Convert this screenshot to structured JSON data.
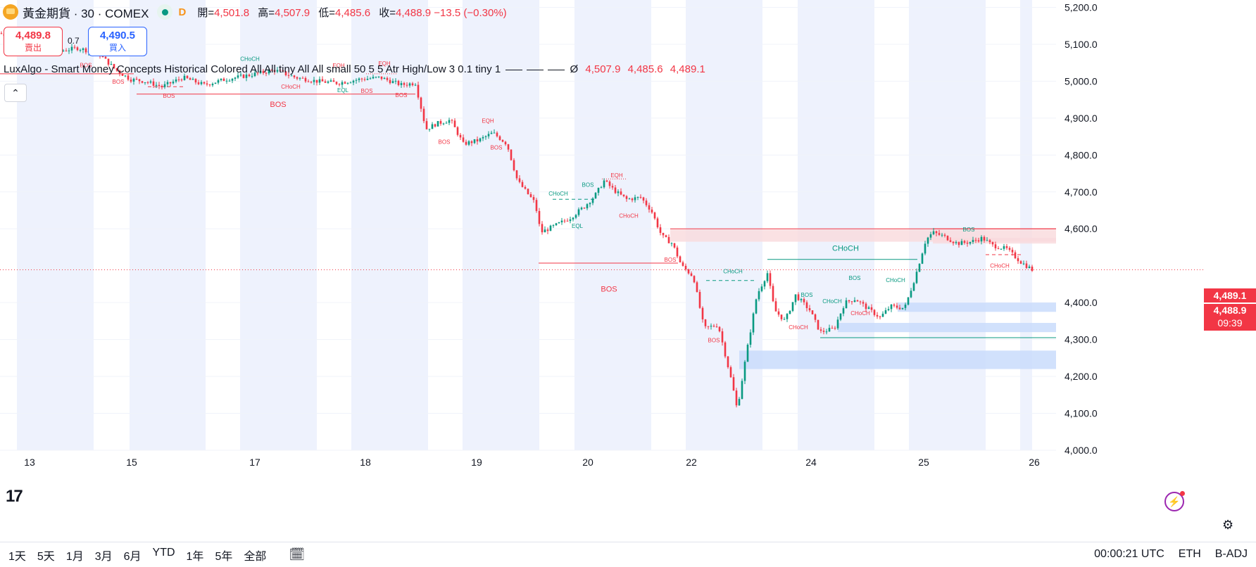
{
  "header": {
    "title": "黃金期貨 · 30 · COMEX",
    "badge": "D",
    "ohlc": [
      {
        "label": "開=",
        "value": "4,501.8"
      },
      {
        "label": "高=",
        "value": "4,507.9"
      },
      {
        "label": "低=",
        "value": "4,485.6"
      },
      {
        "label": "收=",
        "value": "4,488.9 −13.5 (−0.30%)"
      }
    ]
  },
  "trade": {
    "sell_price": "4,489.8",
    "sell_label": "賣出",
    "spread": "0.7",
    "buy_price": "4,490.5",
    "buy_label": "買入"
  },
  "indicator": {
    "name": "LuxAlgo - Smart Money Concepts Historical Colored All All tiny All All small 50 5 5 Atr High/Low 3 0.1 tiny 1",
    "symbol": "Ø",
    "v1": "4,507.9",
    "v2": "4,485.6",
    "v3": "4,489.1"
  },
  "price_tags": {
    "upper": "4,489.1",
    "last": "4,488.9",
    "countdown": "09:39"
  },
  "colors": {
    "up": "#089981",
    "down": "#f23645",
    "band": "#eef2fd",
    "zone_blue": "#c9dcfb",
    "zone_red": "#f9d9dc"
  },
  "bottom": {
    "ranges": [
      "1天",
      "5天",
      "1月",
      "3月",
      "6月",
      "YTD",
      "1年",
      "5年",
      "全部"
    ],
    "calendar_icon": "calendar-range-icon",
    "clock": "00:00:21 UTC",
    "session": "ETH",
    "adj": "B-ADJ"
  },
  "chart_data": {
    "type": "candlestick",
    "yticks": [
      5200,
      5100,
      5000,
      4900,
      4800,
      4700,
      4600,
      4400,
      4300,
      4200,
      4100,
      4000
    ],
    "ytick_labels": [
      "5,200.0",
      "5,100.0",
      "5,000.0",
      "4,900.0",
      "4,800.0",
      "4,700.0",
      "4,600.0",
      "4,400.0",
      "4,300.0",
      "4,200.0",
      "4,100.0",
      "4,000.0"
    ],
    "ylim": [
      4000,
      5220
    ],
    "xlim": [
      0,
      1500
    ],
    "xticks": [
      {
        "label": "13",
        "x": 40
      },
      {
        "label": "15",
        "x": 185
      },
      {
        "label": "17",
        "x": 360
      },
      {
        "label": "18",
        "x": 517
      },
      {
        "label": "19",
        "x": 675
      },
      {
        "label": "20",
        "x": 833
      },
      {
        "label": "22",
        "x": 980
      },
      {
        "label": "24",
        "x": 1150
      },
      {
        "label": "25",
        "x": 1310
      },
      {
        "label": "26",
        "x": 1467
      }
    ],
    "session_bands": [
      [
        24,
        133
      ],
      [
        184,
        292
      ],
      [
        341,
        450
      ],
      [
        499,
        608
      ],
      [
        657,
        766
      ],
      [
        816,
        925
      ],
      [
        974,
        1083
      ],
      [
        1133,
        1242
      ],
      [
        1291,
        1400
      ],
      [
        1449,
        1466
      ]
    ],
    "last_price": 4488.9,
    "price_path": [
      [
        0,
        5130
      ],
      [
        40,
        5100
      ],
      [
        80,
        5080
      ],
      [
        110,
        5090
      ],
      [
        140,
        5075
      ],
      [
        165,
        5030
      ],
      [
        185,
        5005
      ],
      [
        205,
        5000
      ],
      [
        230,
        4985
      ],
      [
        260,
        5010
      ],
      [
        290,
        4990
      ],
      [
        320,
        5005
      ],
      [
        350,
        5015
      ],
      [
        390,
        5030
      ],
      [
        420,
        5010
      ],
      [
        450,
        5000
      ],
      [
        480,
        4995
      ],
      [
        510,
        5005
      ],
      [
        540,
        5010
      ],
      [
        570,
        4990
      ],
      [
        590,
        4995
      ],
      [
        605,
        4870
      ],
      [
        620,
        4885
      ],
      [
        640,
        4895
      ],
      [
        658,
        4830
      ],
      [
        680,
        4840
      ],
      [
        700,
        4860
      ],
      [
        720,
        4830
      ],
      [
        735,
        4730
      ],
      [
        760,
        4670
      ],
      [
        768,
        4590
      ],
      [
        790,
        4610
      ],
      [
        810,
        4630
      ],
      [
        830,
        4660
      ],
      [
        845,
        4690
      ],
      [
        858,
        4730
      ],
      [
        875,
        4700
      ],
      [
        890,
        4680
      ],
      [
        910,
        4685
      ],
      [
        925,
        4650
      ],
      [
        940,
        4580
      ],
      [
        955,
        4560
      ],
      [
        968,
        4500
      ],
      [
        985,
        4470
      ],
      [
        1000,
        4330
      ],
      [
        1020,
        4340
      ],
      [
        1040,
        4180
      ],
      [
        1047,
        4110
      ],
      [
        1060,
        4260
      ],
      [
        1075,
        4420
      ],
      [
        1090,
        4480
      ],
      [
        1100,
        4380
      ],
      [
        1115,
        4350
      ],
      [
        1130,
        4420
      ],
      [
        1150,
        4380
      ],
      [
        1165,
        4320
      ],
      [
        1185,
        4330
      ],
      [
        1200,
        4400
      ],
      [
        1215,
        4410
      ],
      [
        1235,
        4380
      ],
      [
        1250,
        4360
      ],
      [
        1265,
        4390
      ],
      [
        1285,
        4385
      ],
      [
        1300,
        4470
      ],
      [
        1315,
        4570
      ],
      [
        1325,
        4590
      ],
      [
        1340,
        4580
      ],
      [
        1360,
        4560
      ],
      [
        1380,
        4565
      ],
      [
        1395,
        4575
      ],
      [
        1410,
        4555
      ],
      [
        1430,
        4545
      ],
      [
        1450,
        4510
      ],
      [
        1466,
        4489
      ]
    ],
    "zones": [
      {
        "kind": "demand",
        "x0": 1050,
        "x1": 1500,
        "y0": 4220,
        "y1": 4270
      },
      {
        "kind": "demand",
        "x0": 1190,
        "x1": 1500,
        "y0": 4320,
        "y1": 4345
      },
      {
        "kind": "demand",
        "x0": 1275,
        "x1": 1500,
        "y0": 4375,
        "y1": 4400
      },
      {
        "kind": "supply",
        "x0": 952,
        "x1": 1500,
        "y0": 4565,
        "y1": 4598
      },
      {
        "kind": "supply",
        "x0": 1325,
        "x1": 1500,
        "y0": 4560,
        "y1": 4575
      }
    ],
    "structure_lines": [
      {
        "color": "down",
        "x0": 0,
        "x1": 190,
        "y": 5020,
        "style": "solid"
      },
      {
        "color": "down",
        "x0": 194,
        "x1": 590,
        "y": 4965,
        "style": "solid"
      },
      {
        "color": "down",
        "x0": 765,
        "x1": 963,
        "y": 4507,
        "style": "solid"
      },
      {
        "color": "down",
        "x0": 952,
        "x1": 1500,
        "y": 4600,
        "style": "solid"
      },
      {
        "color": "down",
        "x0": 1325,
        "x1": 1500,
        "y": 4600,
        "style": "solid"
      },
      {
        "color": "up",
        "x0": 1090,
        "x1": 1303,
        "y": 4517,
        "style": "solid"
      },
      {
        "color": "up",
        "x0": 1165,
        "x1": 1500,
        "y": 4305,
        "style": "solid"
      },
      {
        "color": "up",
        "x0": 1003,
        "x1": 1075,
        "y": 4460,
        "style": "dashed"
      },
      {
        "color": "up",
        "x0": 785,
        "x1": 845,
        "y": 4680,
        "style": "dashed"
      },
      {
        "color": "down",
        "x0": 855,
        "x1": 890,
        "y": 4735,
        "style": "dotted"
      },
      {
        "color": "down",
        "x0": 520,
        "x1": 565,
        "y": 5020,
        "style": "dotted"
      },
      {
        "color": "down",
        "x0": 210,
        "x1": 260,
        "y": 4985,
        "style": "dashed"
      },
      {
        "color": "down",
        "x0": 1400,
        "x1": 1450,
        "y": 4530,
        "style": "dashed"
      }
    ],
    "annotations": [
      {
        "text": "BOS",
        "x": 122,
        "y": 5038,
        "color": "down",
        "size": 8
      },
      {
        "text": "BOS",
        "x": 168,
        "y": 4993,
        "color": "down",
        "size": 8
      },
      {
        "text": "CHoCH",
        "x": 355,
        "y": 5055,
        "color": "up",
        "size": 8
      },
      {
        "text": "EQH",
        "x": 481,
        "y": 5037,
        "color": "down",
        "size": 8
      },
      {
        "text": "EQH",
        "x": 546,
        "y": 5043,
        "color": "down",
        "size": 8
      },
      {
        "text": "CHoCH",
        "x": 413,
        "y": 4980,
        "color": "down",
        "size": 8
      },
      {
        "text": "BOS",
        "x": 240,
        "y": 4955,
        "color": "down",
        "size": 8
      },
      {
        "text": "EQL",
        "x": 487,
        "y": 4970,
        "color": "up",
        "size": 8
      },
      {
        "text": "BOS",
        "x": 521,
        "y": 4968,
        "color": "down",
        "size": 8
      },
      {
        "text": "BOS",
        "x": 570,
        "y": 4957,
        "color": "down",
        "size": 8
      },
      {
        "text": "BOS",
        "x": 395,
        "y": 4930,
        "color": "down",
        "size": 11
      },
      {
        "text": "BOS",
        "x": 631,
        "y": 4830,
        "color": "down",
        "size": 8
      },
      {
        "text": "EQH",
        "x": 693,
        "y": 4887,
        "color": "down",
        "size": 8
      },
      {
        "text": "BOS",
        "x": 705,
        "y": 4815,
        "color": "down",
        "size": 8
      },
      {
        "text": "CHoCH",
        "x": 793,
        "y": 4690,
        "color": "up",
        "size": 8
      },
      {
        "text": "BOS",
        "x": 835,
        "y": 4714,
        "color": "up",
        "size": 8
      },
      {
        "text": "EQL",
        "x": 820,
        "y": 4602,
        "color": "up",
        "size": 8
      },
      {
        "text": "EQH",
        "x": 876,
        "y": 4740,
        "color": "down",
        "size": 8
      },
      {
        "text": "CHoCH",
        "x": 893,
        "y": 4630,
        "color": "down",
        "size": 8
      },
      {
        "text": "BOS",
        "x": 952,
        "y": 4511,
        "color": "down",
        "size": 8
      },
      {
        "text": "BOS",
        "x": 865,
        "y": 4430,
        "color": "down",
        "size": 11
      },
      {
        "text": "CHoCH",
        "x": 1041,
        "y": 4479,
        "color": "up",
        "size": 8
      },
      {
        "text": "BOS",
        "x": 1014,
        "y": 4293,
        "color": "down",
        "size": 8
      },
      {
        "text": "CHoCH",
        "x": 1201,
        "y": 4540,
        "color": "up",
        "size": 11
      },
      {
        "text": "BOS",
        "x": 1146,
        "y": 4416,
        "color": "up",
        "size": 8
      },
      {
        "text": "CHoCH",
        "x": 1134,
        "y": 4328,
        "color": "down",
        "size": 8
      },
      {
        "text": "CHoCH",
        "x": 1182,
        "y": 4398,
        "color": "up",
        "size": 8
      },
      {
        "text": "BOS",
        "x": 1214,
        "y": 4461,
        "color": "up",
        "size": 8
      },
      {
        "text": "CHoCH",
        "x": 1222,
        "y": 4366,
        "color": "down",
        "size": 8
      },
      {
        "text": "CHoCH",
        "x": 1272,
        "y": 4456,
        "color": "up",
        "size": 8
      },
      {
        "text": "BOS",
        "x": 1376,
        "y": 4593,
        "color": "up",
        "size": 8
      },
      {
        "text": "CHoCH",
        "x": 1420,
        "y": 4495,
        "color": "down",
        "size": 8
      }
    ]
  }
}
